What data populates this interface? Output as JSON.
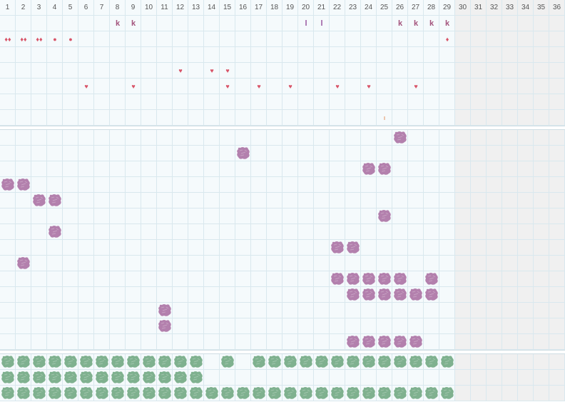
{
  "grid": {
    "columns": [
      "1",
      "2",
      "3",
      "4",
      "5",
      "6",
      "7",
      "8",
      "9",
      "10",
      "11",
      "12",
      "13",
      "14",
      "15",
      "16",
      "17",
      "18",
      "19",
      "20",
      "21",
      "22",
      "23",
      "24",
      "25",
      "26",
      "27",
      "28",
      "29",
      "30",
      "31",
      "32",
      "33",
      "34",
      "35",
      "36"
    ],
    "active_columns": 29,
    "colors": {
      "grid_line": "#d9e8ee",
      "cell_active": "#f5fafc",
      "cell_inactive": "#f0f0f0",
      "purple_blob": "#b380ad",
      "green_blob": "#7fb18f",
      "heart": "#d85468",
      "k_mark": "#a3537c",
      "tick_mark": "#e07a3a"
    }
  },
  "top_panel": {
    "rows": 7,
    "marks": [
      {
        "col": 8,
        "row": 0,
        "type": "k",
        "glyph": "k"
      },
      {
        "col": 9,
        "row": 0,
        "type": "k",
        "glyph": "k"
      },
      {
        "col": 20,
        "row": 0,
        "type": "l",
        "glyph": "l"
      },
      {
        "col": 21,
        "row": 0,
        "type": "l",
        "glyph": "l"
      },
      {
        "col": 26,
        "row": 0,
        "type": "k",
        "glyph": "k"
      },
      {
        "col": 27,
        "row": 0,
        "type": "k",
        "glyph": "k"
      },
      {
        "col": 28,
        "row": 0,
        "type": "k",
        "glyph": "k"
      },
      {
        "col": 29,
        "row": 0,
        "type": "k",
        "glyph": "k"
      },
      {
        "col": 1,
        "row": 1,
        "type": "drop",
        "glyph": "♦♦"
      },
      {
        "col": 2,
        "row": 1,
        "type": "drop",
        "glyph": "♦♦"
      },
      {
        "col": 3,
        "row": 1,
        "type": "drop",
        "glyph": "♦♦"
      },
      {
        "col": 4,
        "row": 1,
        "type": "dot",
        "glyph": "●"
      },
      {
        "col": 5,
        "row": 1,
        "type": "dot",
        "glyph": "●"
      },
      {
        "col": 29,
        "row": 1,
        "type": "drop",
        "glyph": "♦"
      },
      {
        "col": 12,
        "row": 3,
        "type": "heart",
        "glyph": "♥"
      },
      {
        "col": 14,
        "row": 3,
        "type": "heart",
        "glyph": "♥"
      },
      {
        "col": 15,
        "row": 3,
        "type": "heart",
        "glyph": "♥"
      },
      {
        "col": 6,
        "row": 4,
        "type": "heart",
        "glyph": "♥"
      },
      {
        "col": 9,
        "row": 4,
        "type": "heart",
        "glyph": "♥"
      },
      {
        "col": 15,
        "row": 4,
        "type": "heart",
        "glyph": "♥"
      },
      {
        "col": 17,
        "row": 4,
        "type": "heart",
        "glyph": "♥"
      },
      {
        "col": 19,
        "row": 4,
        "type": "heart",
        "glyph": "♥"
      },
      {
        "col": 22,
        "row": 4,
        "type": "heart",
        "glyph": "♥"
      },
      {
        "col": 24,
        "row": 4,
        "type": "heart",
        "glyph": "♥"
      },
      {
        "col": 27,
        "row": 4,
        "type": "heart",
        "glyph": "♥"
      },
      {
        "col": 25,
        "row": 6,
        "type": "tick",
        "glyph": "ı"
      }
    ]
  },
  "middle_panel": {
    "rows": 14,
    "blobs": [
      {
        "col": 26,
        "row": 0
      },
      {
        "col": 16,
        "row": 1
      },
      {
        "col": 24,
        "row": 2
      },
      {
        "col": 25,
        "row": 2
      },
      {
        "col": 1,
        "row": 3
      },
      {
        "col": 2,
        "row": 3
      },
      {
        "col": 3,
        "row": 4
      },
      {
        "col": 4,
        "row": 4
      },
      {
        "col": 25,
        "row": 5
      },
      {
        "col": 4,
        "row": 6
      },
      {
        "col": 22,
        "row": 7
      },
      {
        "col": 23,
        "row": 7
      },
      {
        "col": 2,
        "row": 8
      },
      {
        "col": 22,
        "row": 9
      },
      {
        "col": 23,
        "row": 9
      },
      {
        "col": 24,
        "row": 9
      },
      {
        "col": 25,
        "row": 9
      },
      {
        "col": 26,
        "row": 9
      },
      {
        "col": 28,
        "row": 9
      },
      {
        "col": 23,
        "row": 10
      },
      {
        "col": 24,
        "row": 10
      },
      {
        "col": 25,
        "row": 10
      },
      {
        "col": 26,
        "row": 10
      },
      {
        "col": 27,
        "row": 10
      },
      {
        "col": 28,
        "row": 10
      },
      {
        "col": 11,
        "row": 11
      },
      {
        "col": 11,
        "row": 12
      },
      {
        "col": 23,
        "row": 13
      },
      {
        "col": 24,
        "row": 13
      },
      {
        "col": 25,
        "row": 13
      },
      {
        "col": 26,
        "row": 13
      },
      {
        "col": 27,
        "row": 13
      }
    ]
  },
  "bottom_panel": {
    "rows": 3,
    "row_fills": [
      {
        "row": 0,
        "cols": [
          1,
          2,
          3,
          4,
          5,
          6,
          7,
          8,
          9,
          10,
          11,
          12,
          13,
          15,
          17,
          18,
          19,
          20,
          21,
          22,
          23,
          24,
          25,
          26,
          27,
          28,
          29
        ]
      },
      {
        "row": 1,
        "cols": [
          1,
          2,
          3,
          4,
          5,
          6,
          7,
          8,
          9,
          10,
          11,
          12,
          13
        ]
      },
      {
        "row": 2,
        "cols": [
          1,
          2,
          3,
          4,
          5,
          6,
          7,
          8,
          9,
          10,
          11,
          12,
          13,
          14,
          15,
          16,
          17,
          18,
          19,
          20,
          21,
          22,
          23,
          24,
          25,
          26,
          27,
          28,
          29
        ]
      }
    ]
  }
}
